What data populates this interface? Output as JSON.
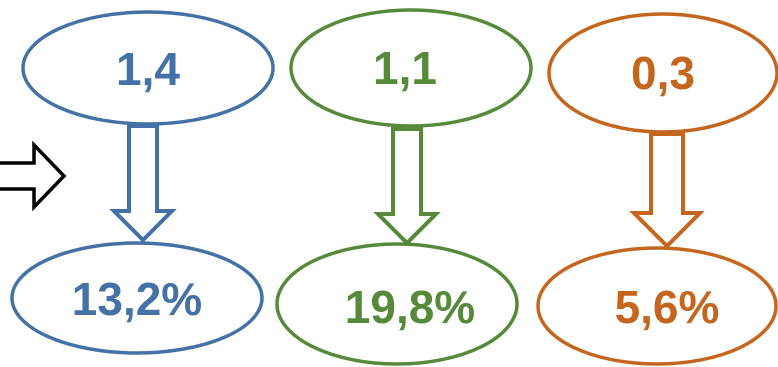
{
  "colors": {
    "blue": "#4472a6",
    "green": "#568a3a",
    "orange": "#c5661f",
    "black": "#000000"
  },
  "columns": [
    {
      "top_value": "1,4",
      "bottom_value": "13,2%",
      "color": "#4472a6"
    },
    {
      "top_value": "1,1",
      "bottom_value": "19,8%",
      "color": "#568a3a"
    },
    {
      "top_value": "0,3",
      "bottom_value": "5,6%",
      "color": "#c5661f"
    }
  ],
  "icons": {
    "left_arrow": "right-arrow-icon",
    "column_arrow": "down-arrow-icon"
  }
}
